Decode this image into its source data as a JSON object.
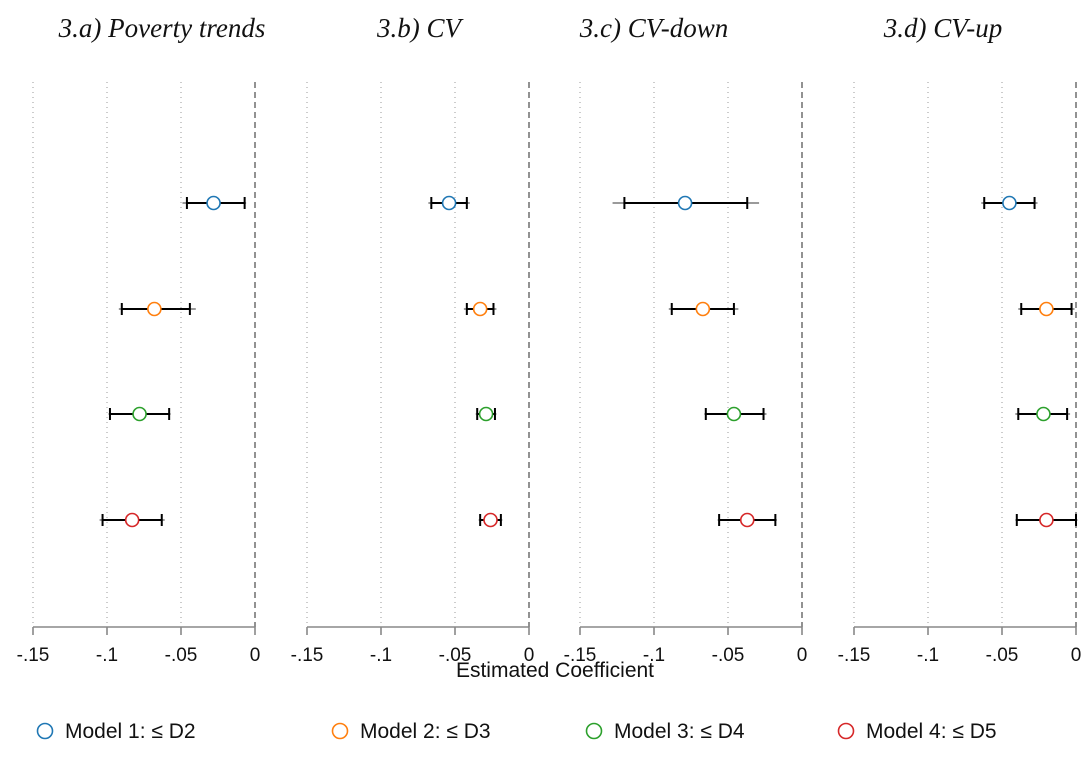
{
  "chart_data": [
    {
      "type": "scatter",
      "title": "3.a) Poverty trends",
      "xlim": [
        -0.15,
        0
      ],
      "xticks": [
        -0.15,
        -0.1,
        -0.05,
        0
      ],
      "x_tick_labels": [
        "-.15",
        "-.1",
        "-.05",
        "0"
      ],
      "series": [
        {
          "name": "Model 1: ≤  D2",
          "color": "#1f77b4",
          "estimate": -0.028,
          "ci90": [
            -0.046,
            -0.007
          ],
          "ci95": [
            -0.049,
            -0.006
          ]
        },
        {
          "name": "Model 2: ≤  D3",
          "color": "#ff7f0e",
          "estimate": -0.068,
          "ci90": [
            -0.09,
            -0.044
          ],
          "ci95": [
            -0.092,
            -0.04
          ]
        },
        {
          "name": "Model 3: ≤  D4",
          "color": "#2ca02c",
          "estimate": -0.078,
          "ci90": [
            -0.098,
            -0.058
          ],
          "ci95": [
            -0.099,
            -0.057
          ]
        },
        {
          "name": "Model 4: ≤  D5",
          "color": "#d62728",
          "estimate": -0.083,
          "ci90": [
            -0.103,
            -0.063
          ],
          "ci95": [
            -0.105,
            -0.061
          ]
        }
      ]
    },
    {
      "type": "scatter",
      "title": "3.b) CV",
      "xlim": [
        -0.15,
        0
      ],
      "xticks": [
        -0.15,
        -0.1,
        -0.05,
        0
      ],
      "x_tick_labels": [
        "-.15",
        "-.1",
        "-.05",
        "0"
      ],
      "series": [
        {
          "name": "Model 1: ≤  D2",
          "color": "#1f77b4",
          "estimate": -0.054,
          "ci90": [
            -0.066,
            -0.042
          ],
          "ci95": [
            -0.068,
            -0.04
          ]
        },
        {
          "name": "Model 2: ≤  D3",
          "color": "#ff7f0e",
          "estimate": -0.033,
          "ci90": [
            -0.042,
            -0.024
          ],
          "ci95": [
            -0.044,
            -0.022
          ]
        },
        {
          "name": "Model 3: ≤  D4",
          "color": "#2ca02c",
          "estimate": -0.029,
          "ci90": [
            -0.035,
            -0.023
          ],
          "ci95": [
            -0.036,
            -0.022
          ]
        },
        {
          "name": "Model 4: ≤  D5",
          "color": "#d62728",
          "estimate": -0.026,
          "ci90": [
            -0.033,
            -0.019
          ],
          "ci95": [
            -0.034,
            -0.018
          ]
        }
      ]
    },
    {
      "type": "scatter",
      "title": "3.c) CV-down",
      "xlim": [
        -0.15,
        0
      ],
      "xticks": [
        -0.15,
        -0.1,
        -0.05,
        0
      ],
      "x_tick_labels": [
        "-.15",
        "-.1",
        "-.05",
        "0"
      ],
      "series": [
        {
          "name": "Model 1: ≤  D2",
          "color": "#1f77b4",
          "estimate": -0.079,
          "ci90": [
            -0.12,
            -0.037
          ],
          "ci95": [
            -0.128,
            -0.029
          ]
        },
        {
          "name": "Model 2: ≤  D3",
          "color": "#ff7f0e",
          "estimate": -0.067,
          "ci90": [
            -0.088,
            -0.046
          ],
          "ci95": [
            -0.09,
            -0.043
          ]
        },
        {
          "name": "Model 3: ≤  D4",
          "color": "#2ca02c",
          "estimate": -0.046,
          "ci90": [
            -0.065,
            -0.026
          ],
          "ci95": [
            -0.066,
            -0.024
          ]
        },
        {
          "name": "Model 4: ≤  D5",
          "color": "#d62728",
          "estimate": -0.037,
          "ci90": [
            -0.056,
            -0.018
          ],
          "ci95": [
            -0.057,
            -0.017
          ]
        }
      ]
    },
    {
      "type": "scatter",
      "title": "3.d) CV-up",
      "xlim": [
        -0.15,
        0
      ],
      "xticks": [
        -0.15,
        -0.1,
        -0.05,
        0
      ],
      "x_tick_labels": [
        "-.15",
        "-.1",
        "-.05",
        "0"
      ],
      "series": [
        {
          "name": "Model 1: ≤  D2",
          "color": "#1f77b4",
          "estimate": -0.045,
          "ci90": [
            -0.062,
            -0.028
          ],
          "ci95": [
            -0.064,
            -0.026
          ]
        },
        {
          "name": "Model 2: ≤  D3",
          "color": "#ff7f0e",
          "estimate": -0.02,
          "ci90": [
            -0.037,
            -0.003
          ],
          "ci95": [
            -0.039,
            -0.001
          ]
        },
        {
          "name": "Model 3: ≤  D4",
          "color": "#2ca02c",
          "estimate": -0.022,
          "ci90": [
            -0.039,
            -0.006
          ],
          "ci95": [
            -0.041,
            -0.004
          ]
        },
        {
          "name": "Model 4: ≤  D5",
          "color": "#d62728",
          "estimate": -0.02,
          "ci90": [
            -0.04,
            0.0
          ],
          "ci95": [
            -0.041,
            0.001
          ]
        }
      ]
    }
  ],
  "axis_title": "Estimated Coefficient",
  "reference_line_at": 0,
  "grid": "dotted vertical",
  "legend": {
    "placement": "bottom",
    "items": [
      {
        "label": "Model 1: ≤  D2",
        "color": "#1f77b4"
      },
      {
        "label": "Model 2: ≤  D3",
        "color": "#ff7f0e"
      },
      {
        "label": "Model 3: ≤  D4",
        "color": "#2ca02c"
      },
      {
        "label": "Model 4: ≤  D5",
        "color": "#d62728"
      }
    ]
  }
}
